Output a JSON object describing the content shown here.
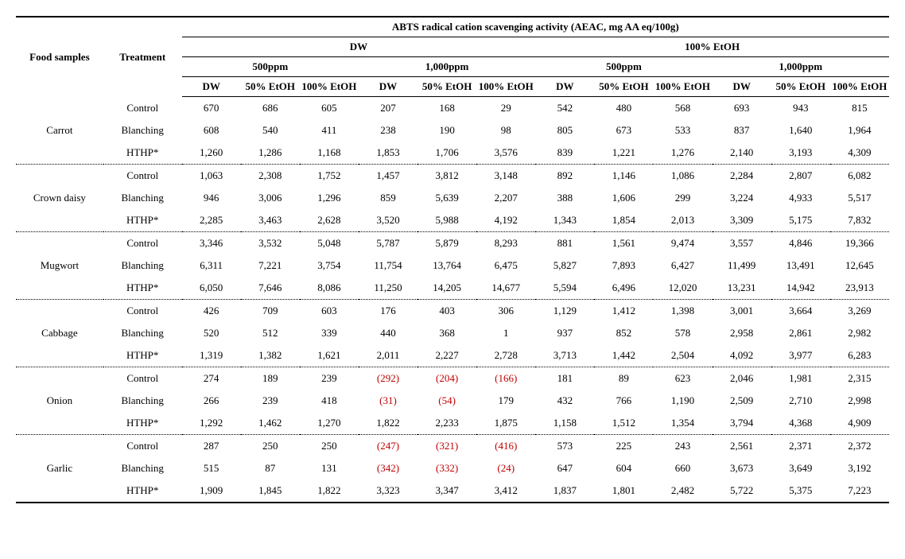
{
  "headers": {
    "main": "ABTS radical cation scavenging activity (AEAC, mg AA eq/100g)",
    "food_samples": "Food samples",
    "treatment": "Treatment",
    "groups": [
      "DW",
      "100% EtOH"
    ],
    "concentrations": [
      "500ppm",
      "1,000ppm"
    ],
    "sub_solvents": [
      "DW",
      "50% EtOH",
      "100% EtOH"
    ]
  },
  "foods": [
    {
      "name": "Carrot",
      "rows": [
        {
          "treatment": "Control",
          "v": [
            "670",
            "686",
            "605",
            "207",
            "168",
            "29",
            "542",
            "480",
            "568",
            "693",
            "943",
            "815"
          ],
          "neg": []
        },
        {
          "treatment": "Blanching",
          "v": [
            "608",
            "540",
            "411",
            "238",
            "190",
            "98",
            "805",
            "673",
            "533",
            "837",
            "1,640",
            "1,964"
          ],
          "neg": []
        },
        {
          "treatment": "HTHP*",
          "v": [
            "1,260",
            "1,286",
            "1,168",
            "1,853",
            "1,706",
            "3,576",
            "839",
            "1,221",
            "1,276",
            "2,140",
            "3,193",
            "4,309"
          ],
          "neg": []
        }
      ]
    },
    {
      "name": "Crown daisy",
      "rows": [
        {
          "treatment": "Control",
          "v": [
            "1,063",
            "2,308",
            "1,752",
            "1,457",
            "3,812",
            "3,148",
            "892",
            "1,146",
            "1,086",
            "2,284",
            "2,807",
            "6,082"
          ],
          "neg": []
        },
        {
          "treatment": "Blanching",
          "v": [
            "946",
            "3,006",
            "1,296",
            "859",
            "5,639",
            "2,207",
            "388",
            "1,606",
            "299",
            "3,224",
            "4,933",
            "5,517"
          ],
          "neg": []
        },
        {
          "treatment": "HTHP*",
          "v": [
            "2,285",
            "3,463",
            "2,628",
            "3,520",
            "5,988",
            "4,192",
            "1,343",
            "1,854",
            "2,013",
            "3,309",
            "5,175",
            "7,832"
          ],
          "neg": []
        }
      ]
    },
    {
      "name": "Mugwort",
      "rows": [
        {
          "treatment": "Control",
          "v": [
            "3,346",
            "3,532",
            "5,048",
            "5,787",
            "5,879",
            "8,293",
            "881",
            "1,561",
            "9,474",
            "3,557",
            "4,846",
            "19,366"
          ],
          "neg": []
        },
        {
          "treatment": "Blanching",
          "v": [
            "6,311",
            "7,221",
            "3,754",
            "11,754",
            "13,764",
            "6,475",
            "5,827",
            "7,893",
            "6,427",
            "11,499",
            "13,491",
            "12,645"
          ],
          "neg": []
        },
        {
          "treatment": "HTHP*",
          "v": [
            "6,050",
            "7,646",
            "8,086",
            "11,250",
            "14,205",
            "14,677",
            "5,594",
            "6,496",
            "12,020",
            "13,231",
            "14,942",
            "23,913"
          ],
          "neg": []
        }
      ]
    },
    {
      "name": "Cabbage",
      "rows": [
        {
          "treatment": "Control",
          "v": [
            "426",
            "709",
            "603",
            "176",
            "403",
            "306",
            "1,129",
            "1,412",
            "1,398",
            "3,001",
            "3,664",
            "3,269"
          ],
          "neg": []
        },
        {
          "treatment": "Blanching",
          "v": [
            "520",
            "512",
            "339",
            "440",
            "368",
            "1",
            "937",
            "852",
            "578",
            "2,958",
            "2,861",
            "2,982"
          ],
          "neg": []
        },
        {
          "treatment": "HTHP*",
          "v": [
            "1,319",
            "1,382",
            "1,621",
            "2,011",
            "2,227",
            "2,728",
            "3,713",
            "1,442",
            "2,504",
            "4,092",
            "3,977",
            "6,283"
          ],
          "neg": []
        }
      ]
    },
    {
      "name": "Onion",
      "rows": [
        {
          "treatment": "Control",
          "v": [
            "274",
            "189",
            "239",
            "(292)",
            "(204)",
            "(166)",
            "181",
            "89",
            "623",
            "2,046",
            "1,981",
            "2,315"
          ],
          "neg": [
            3,
            4,
            5
          ]
        },
        {
          "treatment": "Blanching",
          "v": [
            "266",
            "239",
            "418",
            "(31)",
            "(54)",
            "179",
            "432",
            "766",
            "1,190",
            "2,509",
            "2,710",
            "2,998"
          ],
          "neg": [
            3,
            4
          ]
        },
        {
          "treatment": "HTHP*",
          "v": [
            "1,292",
            "1,462",
            "1,270",
            "1,822",
            "2,233",
            "1,875",
            "1,158",
            "1,512",
            "1,354",
            "3,794",
            "4,368",
            "4,909"
          ],
          "neg": []
        }
      ]
    },
    {
      "name": "Garlic",
      "rows": [
        {
          "treatment": "Control",
          "v": [
            "287",
            "250",
            "250",
            "(247)",
            "(321)",
            "(416)",
            "573",
            "225",
            "243",
            "2,561",
            "2,371",
            "2,372"
          ],
          "neg": [
            3,
            4,
            5
          ]
        },
        {
          "treatment": "Blanching",
          "v": [
            "515",
            "87",
            "131",
            "(342)",
            "(332)",
            "(24)",
            "647",
            "604",
            "660",
            "3,673",
            "3,649",
            "3,192"
          ],
          "neg": [
            3,
            4,
            5
          ]
        },
        {
          "treatment": "HTHP*",
          "v": [
            "1,909",
            "1,845",
            "1,822",
            "3,323",
            "3,347",
            "3,412",
            "1,837",
            "1,801",
            "2,482",
            "5,722",
            "5,375",
            "7,223"
          ],
          "neg": []
        }
      ]
    }
  ]
}
